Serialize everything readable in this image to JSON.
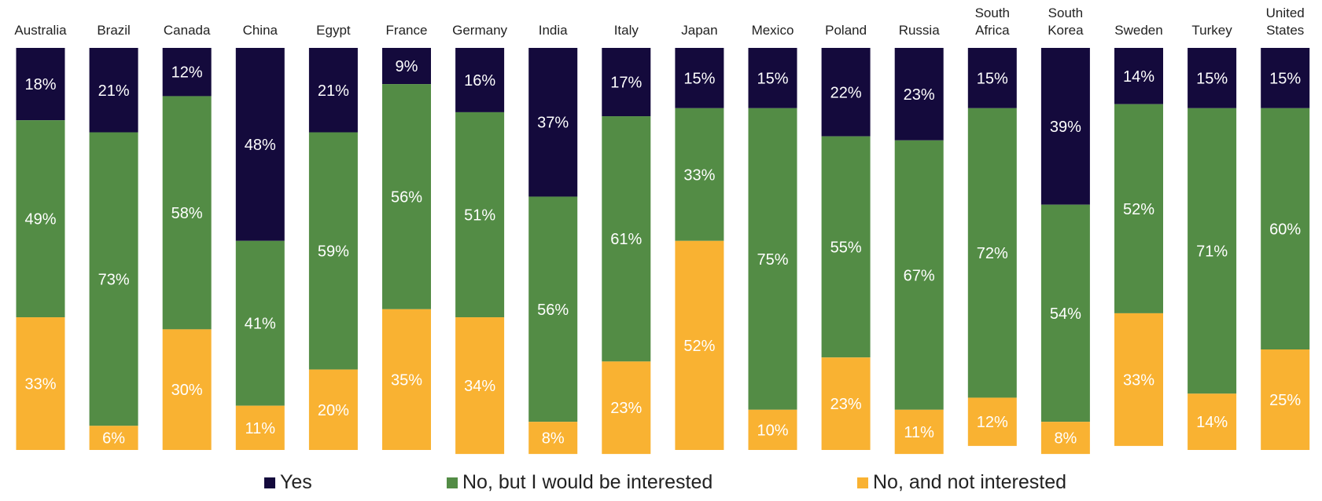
{
  "chart_data": {
    "type": "bar",
    "stacked": true,
    "percent_stacked": true,
    "title": "",
    "categories": [
      "Australia",
      "Brazil",
      "Canada",
      "China",
      "Egypt",
      "France",
      "Germany",
      "India",
      "Italy",
      "Japan",
      "Mexico",
      "Poland",
      "Russia",
      "South Africa",
      "South Korea",
      "Sweden",
      "Turkey",
      "United States"
    ],
    "series": [
      {
        "name": "Yes",
        "color": "#140a3c",
        "values": [
          18,
          21,
          12,
          48,
          21,
          9,
          16,
          37,
          17,
          15,
          15,
          22,
          23,
          15,
          39,
          14,
          15,
          15
        ]
      },
      {
        "name": "No, but I would be interested",
        "color": "#538c45",
        "values": [
          49,
          73,
          58,
          41,
          59,
          56,
          51,
          56,
          61,
          33,
          75,
          55,
          67,
          72,
          54,
          52,
          71,
          60
        ]
      },
      {
        "name": "No, and not interested",
        "color": "#f9b232",
        "values": [
          33,
          6,
          30,
          11,
          20,
          35,
          34,
          8,
          23,
          52,
          10,
          23,
          11,
          12,
          8,
          33,
          14,
          25
        ]
      }
    ],
    "value_suffix": "%",
    "legend_position": "bottom",
    "grid": false,
    "ylim": [
      0,
      100
    ]
  }
}
